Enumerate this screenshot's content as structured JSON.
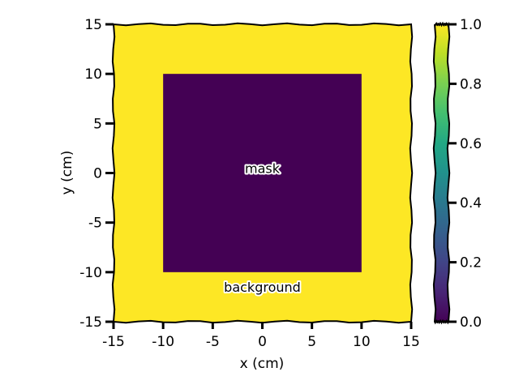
{
  "chart_data": {
    "type": "heatmap",
    "title": "",
    "xlabel": "x (cm)",
    "ylabel": "y (cm)",
    "xlim": [
      -15,
      15
    ],
    "ylim": [
      -15,
      15
    ],
    "xticks": [
      -15,
      -10,
      -5,
      0,
      5,
      10,
      15
    ],
    "yticks": [
      -15,
      -10,
      -5,
      0,
      5,
      10,
      15
    ],
    "xtick_labels": [
      "-15",
      "-10",
      "-5",
      "0",
      "5",
      "10",
      "15"
    ],
    "ytick_labels": [
      "-15",
      "-10",
      "-5",
      "0",
      "5",
      "10",
      "15"
    ],
    "regions": [
      {
        "x": [
          -15,
          15
        ],
        "y": [
          -15,
          15
        ],
        "value": 1.0
      },
      {
        "x": [
          -10,
          10
        ],
        "y": [
          -10,
          10
        ],
        "value": 0.0
      }
    ],
    "annotations": [
      {
        "text": "mask",
        "x": 0,
        "y": 0.5
      },
      {
        "text": "background",
        "x": 0,
        "y": -11.5
      }
    ],
    "colorbar": {
      "colormap": "viridis",
      "range": [
        0.0,
        1.0
      ],
      "ticks": [
        0.0,
        0.2,
        0.4,
        0.6,
        0.8,
        1.0
      ],
      "tick_labels": [
        "0.0",
        "0.2",
        "0.4",
        "0.6",
        "0.8",
        "1.0"
      ]
    },
    "colors": {
      "low": "#440154",
      "high": "#fde725"
    },
    "grid": false
  }
}
